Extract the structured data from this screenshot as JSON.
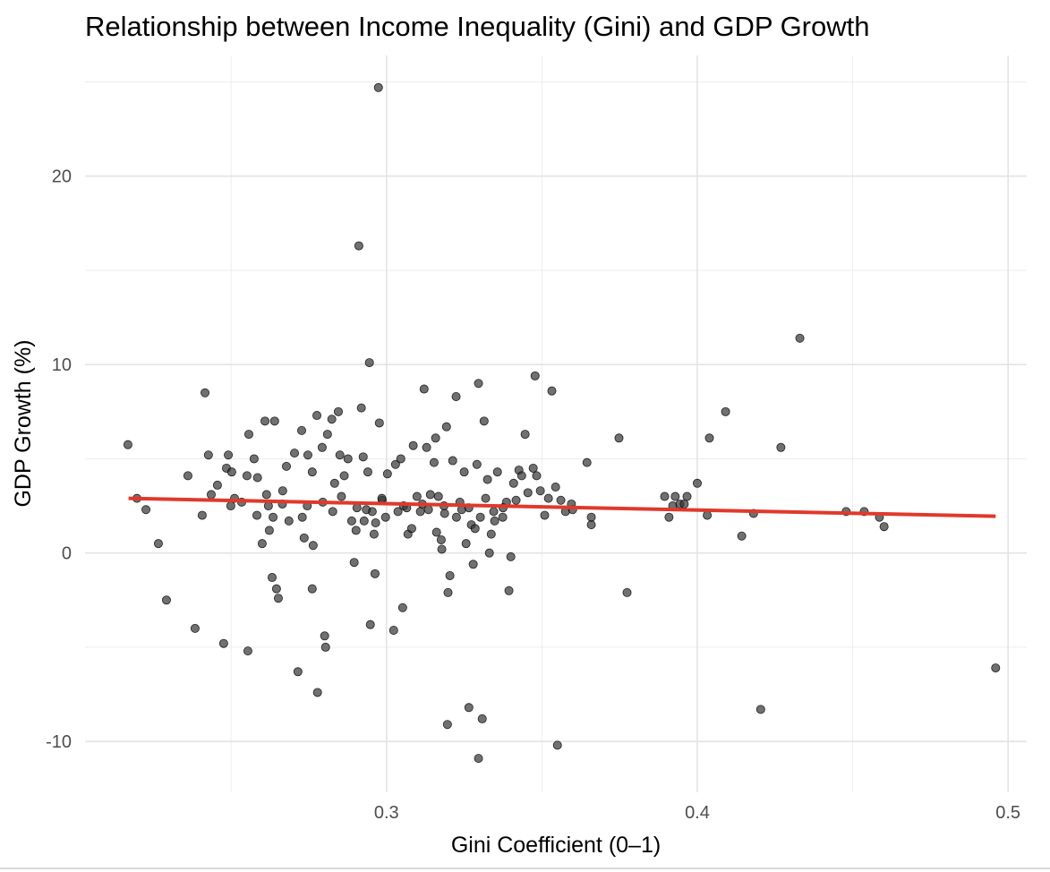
{
  "chart_data": {
    "type": "scatter",
    "title": "Relationship between Income Inequality (Gini) and GDP Growth",
    "xlabel": "Gini Coefficient (0–1)",
    "ylabel": "GDP Growth (%)",
    "xlim": [
      0.203,
      0.506
    ],
    "ylim": [
      -12.7,
      26.4
    ],
    "xticks": [
      0.3,
      0.4,
      0.5
    ],
    "xtick_labels": [
      "0.3",
      "0.4",
      "0.5"
    ],
    "xminor": [
      0.25,
      0.35,
      0.45
    ],
    "yticks": [
      -10,
      0,
      10,
      20
    ],
    "ytick_labels": [
      "-10",
      "0",
      "10",
      "20"
    ],
    "yminor": [
      -5,
      5,
      15,
      25
    ],
    "grid": true,
    "point_color": "#333333",
    "line_color": "#e0392b",
    "trend_line": {
      "x": [
        0.217,
        0.496
      ],
      "y": [
        2.9,
        1.95
      ]
    },
    "points": [
      [
        0.2168,
        5.75
      ],
      [
        0.2197,
        2.9
      ],
      [
        0.2226,
        2.3
      ],
      [
        0.2266,
        0.5
      ],
      [
        0.2292,
        -2.5
      ],
      [
        0.2361,
        4.1
      ],
      [
        0.2384,
        -4.0
      ],
      [
        0.2407,
        2.0
      ],
      [
        0.2416,
        8.5
      ],
      [
        0.2427,
        5.2
      ],
      [
        0.2436,
        3.1
      ],
      [
        0.2456,
        3.6
      ],
      [
        0.2476,
        -4.8
      ],
      [
        0.2485,
        4.5
      ],
      [
        0.2491,
        5.2
      ],
      [
        0.2499,
        2.5
      ],
      [
        0.2502,
        4.3
      ],
      [
        0.2511,
        2.9
      ],
      [
        0.2534,
        2.7
      ],
      [
        0.2551,
        4.1
      ],
      [
        0.2554,
        -5.2
      ],
      [
        0.2557,
        6.3
      ],
      [
        0.2574,
        5.0
      ],
      [
        0.2583,
        2.0
      ],
      [
        0.26,
        0.5
      ],
      [
        0.2609,
        7.0
      ],
      [
        0.2614,
        3.1
      ],
      [
        0.262,
        2.5
      ],
      [
        0.2623,
        1.2
      ],
      [
        0.2632,
        -1.3
      ],
      [
        0.2635,
        1.9
      ],
      [
        0.264,
        7.0
      ],
      [
        0.2646,
        -1.9
      ],
      [
        0.2652,
        -2.4
      ],
      [
        0.2666,
        3.3
      ],
      [
        0.2678,
        4.6
      ],
      [
        0.2686,
        1.7
      ],
      [
        0.2704,
        5.3
      ],
      [
        0.2715,
        -6.3
      ],
      [
        0.2727,
        6.5
      ],
      [
        0.2729,
        1.9
      ],
      [
        0.2735,
        0.8
      ],
      [
        0.2747,
        5.2
      ],
      [
        0.2761,
        4.3
      ],
      [
        0.2761,
        -1.9
      ],
      [
        0.2764,
        0.4
      ],
      [
        0.2776,
        7.3
      ],
      [
        0.2778,
        -7.4
      ],
      [
        0.2793,
        5.6
      ],
      [
        0.2801,
        -4.4
      ],
      [
        0.2804,
        -5.0
      ],
      [
        0.281,
        6.3
      ],
      [
        0.2824,
        7.1
      ],
      [
        0.2827,
        2.2
      ],
      [
        0.2833,
        3.7
      ],
      [
        0.2845,
        7.5
      ],
      [
        0.285,
        5.2
      ],
      [
        0.2864,
        4.1
      ],
      [
        0.2876,
        5.0
      ],
      [
        0.2888,
        1.7
      ],
      [
        0.2896,
        -0.5
      ],
      [
        0.2902,
        1.2
      ],
      [
        0.2911,
        16.3
      ],
      [
        0.2919,
        7.7
      ],
      [
        0.2925,
        5.1
      ],
      [
        0.2928,
        1.7
      ],
      [
        0.294,
        4.3
      ],
      [
        0.2945,
        10.1
      ],
      [
        0.2948,
        -3.8
      ],
      [
        0.2954,
        2.2
      ],
      [
        0.296,
        1.0
      ],
      [
        0.2963,
        -1.1
      ],
      [
        0.2965,
        1.6
      ],
      [
        0.2974,
        24.7
      ],
      [
        0.2977,
        6.9
      ],
      [
        0.2986,
        2.8
      ],
      [
        0.2997,
        1.9
      ],
      [
        0.3003,
        4.2
      ],
      [
        0.3023,
        -4.1
      ],
      [
        0.3029,
        4.7
      ],
      [
        0.3037,
        2.2
      ],
      [
        0.3046,
        5.0
      ],
      [
        0.3052,
        -2.9
      ],
      [
        0.3069,
        1.0
      ],
      [
        0.3081,
        1.3
      ],
      [
        0.3086,
        5.7
      ],
      [
        0.3098,
        3.0
      ],
      [
        0.3109,
        2.2
      ],
      [
        0.3121,
        8.7
      ],
      [
        0.3129,
        5.6
      ],
      [
        0.3141,
        3.1
      ],
      [
        0.3153,
        4.8
      ],
      [
        0.3158,
        6.1
      ],
      [
        0.3161,
        1.1
      ],
      [
        0.3167,
        3.0
      ],
      [
        0.3176,
        0.7
      ],
      [
        0.3178,
        0.2
      ],
      [
        0.3187,
        2.1
      ],
      [
        0.3193,
        6.7
      ],
      [
        0.3196,
        -9.1
      ],
      [
        0.3198,
        -2.1
      ],
      [
        0.3204,
        -1.2
      ],
      [
        0.3213,
        4.9
      ],
      [
        0.3224,
        8.3
      ],
      [
        0.3236,
        2.7
      ],
      [
        0.3242,
        2.3
      ],
      [
        0.325,
        4.3
      ],
      [
        0.3256,
        0.5
      ],
      [
        0.3265,
        -8.2
      ],
      [
        0.3273,
        1.5
      ],
      [
        0.3279,
        -0.6
      ],
      [
        0.3291,
        4.7
      ],
      [
        0.3296,
        9.0
      ],
      [
        0.3296,
        -10.9
      ],
      [
        0.3302,
        1.9
      ],
      [
        0.3308,
        -8.8
      ],
      [
        0.3314,
        7.0
      ],
      [
        0.3319,
        2.9
      ],
      [
        0.3325,
        3.9
      ],
      [
        0.3331,
        0.0
      ],
      [
        0.3337,
        1.0
      ],
      [
        0.3348,
        1.7
      ],
      [
        0.3357,
        4.3
      ],
      [
        0.3374,
        1.9
      ],
      [
        0.3386,
        2.7
      ],
      [
        0.3394,
        -2.0
      ],
      [
        0.34,
        -0.2
      ],
      [
        0.3409,
        3.7
      ],
      [
        0.3417,
        2.8
      ],
      [
        0.3426,
        4.4
      ],
      [
        0.3435,
        4.1
      ],
      [
        0.3446,
        6.3
      ],
      [
        0.3455,
        3.2
      ],
      [
        0.3472,
        4.5
      ],
      [
        0.3478,
        9.4
      ],
      [
        0.3483,
        4.1
      ],
      [
        0.3495,
        3.3
      ],
      [
        0.3509,
        2.0
      ],
      [
        0.3521,
        2.9
      ],
      [
        0.3532,
        8.6
      ],
      [
        0.3544,
        3.5
      ],
      [
        0.355,
        -10.2
      ],
      [
        0.3561,
        2.8
      ],
      [
        0.3576,
        2.2
      ],
      [
        0.3599,
        2.3
      ],
      [
        0.3645,
        4.8
      ],
      [
        0.3659,
        1.5
      ],
      [
        0.3659,
        1.9
      ],
      [
        0.3748,
        6.1
      ],
      [
        0.3774,
        -2.1
      ],
      [
        0.3895,
        3.0
      ],
      [
        0.3909,
        1.9
      ],
      [
        0.3921,
        2.5
      ],
      [
        0.3929,
        3.0
      ],
      [
        0.3944,
        2.6
      ],
      [
        0.3958,
        2.6
      ],
      [
        0.3967,
        3.0
      ],
      [
        0.4,
        3.7
      ],
      [
        0.4032,
        2.0
      ],
      [
        0.4039,
        6.1
      ],
      [
        0.4091,
        7.5
      ],
      [
        0.4143,
        0.9
      ],
      [
        0.4181,
        2.1
      ],
      [
        0.4204,
        -8.3
      ],
      [
        0.4269,
        5.6
      ],
      [
        0.433,
        11.4
      ],
      [
        0.4479,
        2.2
      ],
      [
        0.4537,
        2.2
      ],
      [
        0.4586,
        1.9
      ],
      [
        0.4601,
        1.4
      ],
      [
        0.496,
        -6.1
      ],
      [
        0.2585,
        4.0
      ],
      [
        0.2665,
        2.6
      ],
      [
        0.2745,
        2.5
      ],
      [
        0.2795,
        2.7
      ],
      [
        0.2855,
        3.0
      ],
      [
        0.2905,
        2.4
      ],
      [
        0.2935,
        2.3
      ],
      [
        0.2985,
        2.9
      ],
      [
        0.3055,
        2.5
      ],
      [
        0.3065,
        2.4
      ],
      [
        0.3115,
        2.6
      ],
      [
        0.3135,
        2.3
      ],
      [
        0.3185,
        2.5
      ],
      [
        0.3225,
        1.9
      ],
      [
        0.3265,
        2.4
      ],
      [
        0.3285,
        1.3
      ],
      [
        0.3345,
        2.2
      ],
      [
        0.3375,
        2.4
      ],
      [
        0.3595,
        2.6
      ]
    ]
  }
}
